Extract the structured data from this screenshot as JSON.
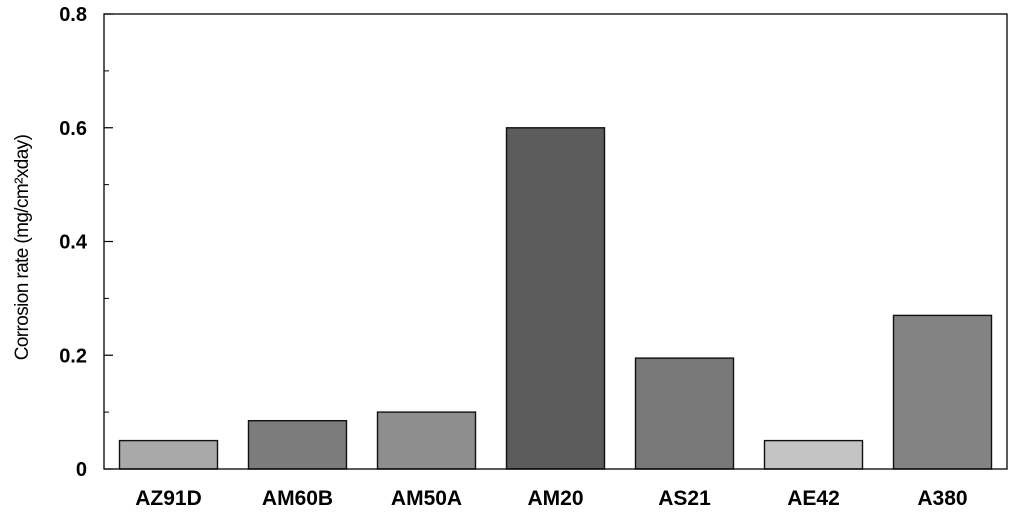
{
  "chart_data": {
    "type": "bar",
    "title": "",
    "xlabel": "",
    "ylabel": "Corrosion rate (mg/cm²xday)",
    "ylim": [
      0,
      0.8
    ],
    "yticks": [
      0,
      0.2,
      0.4,
      0.6,
      0.8
    ],
    "ytick_labels": [
      "0",
      "0.2",
      "0.4",
      "0.6",
      "0.8"
    ],
    "categories": [
      "AZ91D",
      "AM60B",
      "AM50A",
      "AM20",
      "AS21",
      "AE42",
      "A380"
    ],
    "values": [
      0.05,
      0.085,
      0.1,
      0.6,
      0.195,
      0.05,
      0.27
    ],
    "grid": false,
    "legend": "none",
    "colors": {
      "bars": [
        "#a9a9a9",
        "#7c7c7c",
        "#8e8e8e",
        "#5c5c5c",
        "#787878",
        "#c4c4c4",
        "#838383"
      ],
      "edge": "#111111",
      "axis": "#000000"
    }
  }
}
